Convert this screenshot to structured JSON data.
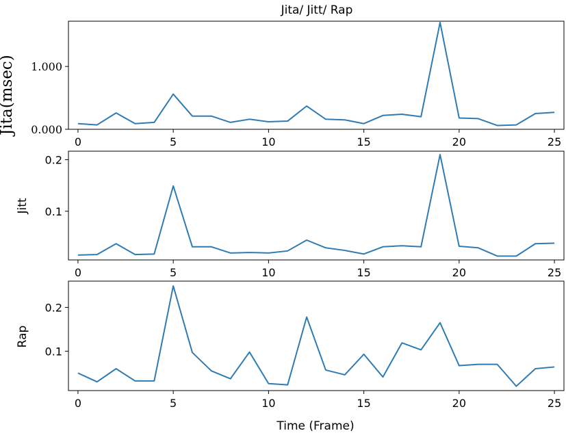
{
  "figure": {
    "title": "Jita/ Jitt/ Rap",
    "xlabel": "Time (Frame)"
  },
  "colors": {
    "series": "#2e7bb4"
  },
  "chart_data": [
    {
      "type": "line",
      "title": "Jita/ Jitt/ Rap",
      "ylabel": "Jita(msec)",
      "xlim": [
        -0.5,
        25.5
      ],
      "ylim": [
        0,
        1.72
      ],
      "xticks": [
        0,
        5,
        10,
        15,
        20,
        25
      ],
      "xtick_labels": [
        "0",
        "5",
        "10",
        "15",
        "20",
        "25"
      ],
      "yticks": [
        0,
        1
      ],
      "ytick_labels": [
        "0.000",
        "1.000"
      ],
      "grid": false,
      "x": [
        0,
        1,
        2,
        3,
        4,
        5,
        6,
        7,
        8,
        9,
        10,
        11,
        12,
        13,
        14,
        15,
        16,
        17,
        18,
        19,
        20,
        21,
        22,
        23,
        24,
        25
      ],
      "series": [
        {
          "values": [
            0.09,
            0.07,
            0.26,
            0.09,
            0.11,
            0.56,
            0.21,
            0.21,
            0.11,
            0.16,
            0.12,
            0.13,
            0.37,
            0.16,
            0.15,
            0.09,
            0.22,
            0.24,
            0.2,
            1.7,
            0.18,
            0.17,
            0.06,
            0.07,
            0.25,
            0.27
          ]
        }
      ]
    },
    {
      "type": "line",
      "ylabel": "Jitt",
      "xlim": [
        -0.5,
        25.5
      ],
      "ylim": [
        0.0055,
        0.2165
      ],
      "xticks": [
        0,
        5,
        10,
        15,
        20,
        25
      ],
      "xtick_labels": [
        "0",
        "5",
        "10",
        "15",
        "20",
        "25"
      ],
      "yticks": [
        0.1,
        0.2
      ],
      "ytick_labels": [
        "0.1",
        "0.2"
      ],
      "grid": false,
      "x": [
        0,
        1,
        2,
        3,
        4,
        5,
        6,
        7,
        8,
        9,
        10,
        11,
        12,
        13,
        14,
        15,
        16,
        17,
        18,
        19,
        20,
        21,
        22,
        23,
        24,
        25
      ],
      "series": [
        {
          "values": [
            0.015,
            0.016,
            0.037,
            0.016,
            0.017,
            0.149,
            0.031,
            0.031,
            0.019,
            0.02,
            0.019,
            0.023,
            0.044,
            0.029,
            0.024,
            0.017,
            0.031,
            0.033,
            0.031,
            0.21,
            0.032,
            0.029,
            0.013,
            0.013,
            0.037,
            0.038
          ]
        }
      ]
    },
    {
      "type": "line",
      "ylabel": "Rap",
      "xlim": [
        -0.5,
        25.5
      ],
      "ylim": [
        0.01,
        0.26
      ],
      "xticks": [
        0,
        5,
        10,
        15,
        20,
        25
      ],
      "xtick_labels": [
        "0",
        "5",
        "10",
        "15",
        "20",
        "25"
      ],
      "yticks": [
        0.1,
        0.2
      ],
      "ytick_labels": [
        "0.1",
        "0.2"
      ],
      "grid": false,
      "x": [
        0,
        1,
        2,
        3,
        4,
        5,
        6,
        7,
        8,
        9,
        10,
        11,
        12,
        13,
        14,
        15,
        16,
        17,
        18,
        19,
        20,
        21,
        22,
        23,
        24,
        25
      ],
      "series": [
        {
          "values": [
            0.05,
            0.03,
            0.06,
            0.032,
            0.032,
            0.249,
            0.097,
            0.055,
            0.037,
            0.098,
            0.026,
            0.023,
            0.178,
            0.057,
            0.046,
            0.093,
            0.041,
            0.119,
            0.103,
            0.165,
            0.067,
            0.07,
            0.07,
            0.02,
            0.06,
            0.064
          ]
        }
      ]
    }
  ]
}
